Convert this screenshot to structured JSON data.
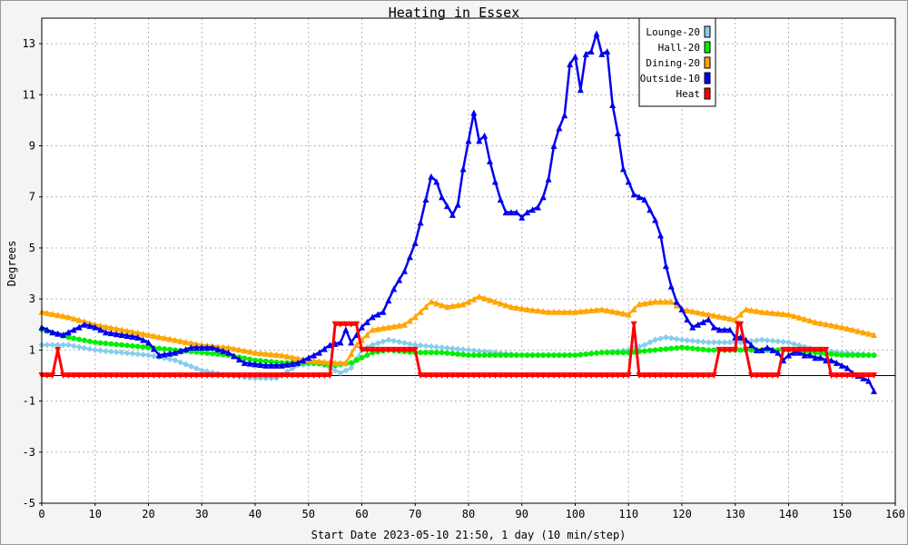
{
  "chart_data": {
    "type": "line",
    "title": "Heating in Essex",
    "xlabel": "Start Date 2023-05-10 21:50, 1 day (10 min/step)",
    "ylabel": "Degrees",
    "xlim": [
      0,
      160
    ],
    "ylim": [
      -5,
      14
    ],
    "x_ticks": [
      0,
      10,
      20,
      30,
      40,
      50,
      60,
      70,
      80,
      90,
      100,
      110,
      120,
      130,
      140,
      150,
      160
    ],
    "y_ticks": [
      -5,
      -3,
      -1,
      1,
      3,
      5,
      7,
      9,
      11,
      13
    ],
    "grid": true,
    "legend_position": "top-right",
    "zero_line": true,
    "series": [
      {
        "name": "Lounge-20",
        "color": "#87ceeb",
        "marker": "diamond",
        "points": [
          [
            0,
            1.2
          ],
          [
            5,
            1.2
          ],
          [
            10,
            1.0
          ],
          [
            15,
            0.9
          ],
          [
            20,
            0.8
          ],
          [
            25,
            0.6
          ],
          [
            30,
            0.2
          ],
          [
            35,
            0.0
          ],
          [
            40,
            -0.1
          ],
          [
            44,
            -0.1
          ],
          [
            48,
            0.4
          ],
          [
            52,
            0.5
          ],
          [
            56,
            0.1
          ],
          [
            58,
            0.3
          ],
          [
            60,
            1.0
          ],
          [
            62,
            1.2
          ],
          [
            65,
            1.4
          ],
          [
            70,
            1.2
          ],
          [
            75,
            1.1
          ],
          [
            80,
            1.0
          ],
          [
            85,
            0.9
          ],
          [
            90,
            0.8
          ],
          [
            95,
            0.8
          ],
          [
            100,
            0.8
          ],
          [
            105,
            0.9
          ],
          [
            110,
            1.0
          ],
          [
            113,
            1.2
          ],
          [
            115,
            1.4
          ],
          [
            117,
            1.5
          ],
          [
            120,
            1.4
          ],
          [
            125,
            1.3
          ],
          [
            128,
            1.3
          ],
          [
            131,
            1.3
          ],
          [
            135,
            1.4
          ],
          [
            140,
            1.3
          ],
          [
            145,
            1.0
          ],
          [
            150,
            0.9
          ],
          [
            156,
            0.8
          ]
        ]
      },
      {
        "name": "Hall-20",
        "color": "#00ee00",
        "marker": "circle",
        "points": [
          [
            0,
            1.8
          ],
          [
            5,
            1.5
          ],
          [
            10,
            1.3
          ],
          [
            15,
            1.2
          ],
          [
            20,
            1.1
          ],
          [
            25,
            1.0
          ],
          [
            30,
            0.9
          ],
          [
            35,
            0.8
          ],
          [
            40,
            0.6
          ],
          [
            45,
            0.5
          ],
          [
            50,
            0.5
          ],
          [
            55,
            0.4
          ],
          [
            58,
            0.5
          ],
          [
            62,
            0.9
          ],
          [
            65,
            1.0
          ],
          [
            70,
            0.9
          ],
          [
            75,
            0.9
          ],
          [
            80,
            0.8
          ],
          [
            85,
            0.8
          ],
          [
            90,
            0.8
          ],
          [
            95,
            0.8
          ],
          [
            100,
            0.8
          ],
          [
            105,
            0.9
          ],
          [
            110,
            0.9
          ],
          [
            115,
            1.0
          ],
          [
            120,
            1.1
          ],
          [
            125,
            1.0
          ],
          [
            130,
            1.0
          ],
          [
            135,
            1.0
          ],
          [
            140,
            1.0
          ],
          [
            145,
            0.9
          ],
          [
            150,
            0.8
          ],
          [
            156,
            0.8
          ]
        ]
      },
      {
        "name": "Dining-20",
        "color": "#ffa500",
        "marker": "triangle",
        "points": [
          [
            0,
            2.5
          ],
          [
            5,
            2.3
          ],
          [
            10,
            2.0
          ],
          [
            15,
            1.8
          ],
          [
            20,
            1.6
          ],
          [
            25,
            1.4
          ],
          [
            30,
            1.2
          ],
          [
            35,
            1.1
          ],
          [
            40,
            0.9
          ],
          [
            45,
            0.8
          ],
          [
            50,
            0.6
          ],
          [
            55,
            0.5
          ],
          [
            57,
            0.5
          ],
          [
            59,
            1.2
          ],
          [
            62,
            1.8
          ],
          [
            65,
            1.9
          ],
          [
            68,
            2.0
          ],
          [
            70,
            2.3
          ],
          [
            73,
            2.9
          ],
          [
            76,
            2.7
          ],
          [
            79,
            2.8
          ],
          [
            82,
            3.1
          ],
          [
            85,
            2.9
          ],
          [
            88,
            2.7
          ],
          [
            91,
            2.6
          ],
          [
            95,
            2.5
          ],
          [
            100,
            2.5
          ],
          [
            105,
            2.6
          ],
          [
            110,
            2.4
          ],
          [
            112,
            2.8
          ],
          [
            115,
            2.9
          ],
          [
            118,
            2.9
          ],
          [
            120,
            2.6
          ],
          [
            125,
            2.4
          ],
          [
            130,
            2.2
          ],
          [
            132,
            2.6
          ],
          [
            135,
            2.5
          ],
          [
            140,
            2.4
          ],
          [
            145,
            2.1
          ],
          [
            150,
            1.9
          ],
          [
            156,
            1.6
          ]
        ]
      },
      {
        "name": "Outside-10",
        "color": "#0000ee",
        "marker": "triangle",
        "points": [
          [
            0,
            1.9
          ],
          [
            2,
            1.7
          ],
          [
            4,
            1.6
          ],
          [
            6,
            1.8
          ],
          [
            8,
            2.0
          ],
          [
            10,
            1.9
          ],
          [
            12,
            1.7
          ],
          [
            15,
            1.6
          ],
          [
            18,
            1.5
          ],
          [
            20,
            1.3
          ],
          [
            22,
            0.8
          ],
          [
            25,
            0.9
          ],
          [
            28,
            1.1
          ],
          [
            32,
            1.1
          ],
          [
            35,
            0.9
          ],
          [
            38,
            0.5
          ],
          [
            42,
            0.4
          ],
          [
            45,
            0.4
          ],
          [
            48,
            0.5
          ],
          [
            50,
            0.7
          ],
          [
            52,
            0.9
          ],
          [
            54,
            1.2
          ],
          [
            56,
            1.3
          ],
          [
            57,
            1.8
          ],
          [
            58,
            1.3
          ],
          [
            60,
            1.9
          ],
          [
            62,
            2.3
          ],
          [
            64,
            2.5
          ],
          [
            66,
            3.4
          ],
          [
            68,
            4.1
          ],
          [
            70,
            5.2
          ],
          [
            71,
            6.0
          ],
          [
            72,
            6.9
          ],
          [
            73,
            7.8
          ],
          [
            74,
            7.6
          ],
          [
            75,
            7.0
          ],
          [
            77,
            6.3
          ],
          [
            78,
            6.7
          ],
          [
            79,
            8.1
          ],
          [
            80,
            9.2
          ],
          [
            81,
            10.3
          ],
          [
            82,
            9.2
          ],
          [
            83,
            9.4
          ],
          [
            84,
            8.4
          ],
          [
            85,
            7.6
          ],
          [
            86,
            6.9
          ],
          [
            87,
            6.4
          ],
          [
            88,
            6.4
          ],
          [
            89,
            6.4
          ],
          [
            90,
            6.2
          ],
          [
            91,
            6.4
          ],
          [
            92,
            6.5
          ],
          [
            93,
            6.6
          ],
          [
            94,
            7.0
          ],
          [
            95,
            7.7
          ],
          [
            96,
            9.0
          ],
          [
            97,
            9.7
          ],
          [
            98,
            10.2
          ],
          [
            99,
            12.2
          ],
          [
            100,
            12.5
          ],
          [
            101,
            11.2
          ],
          [
            102,
            12.6
          ],
          [
            103,
            12.7
          ],
          [
            104,
            13.4
          ],
          [
            105,
            12.6
          ],
          [
            106,
            12.7
          ],
          [
            107,
            10.6
          ],
          [
            108,
            9.5
          ],
          [
            109,
            8.1
          ],
          [
            110,
            7.6
          ],
          [
            111,
            7.1
          ],
          [
            112,
            7.0
          ],
          [
            113,
            6.9
          ],
          [
            114,
            6.5
          ],
          [
            115,
            6.1
          ],
          [
            116,
            5.5
          ],
          [
            117,
            4.3
          ],
          [
            118,
            3.5
          ],
          [
            119,
            2.9
          ],
          [
            120,
            2.6
          ],
          [
            121,
            2.2
          ],
          [
            122,
            1.9
          ],
          [
            123,
            2.0
          ],
          [
            124,
            2.1
          ],
          [
            125,
            2.2
          ],
          [
            126,
            1.9
          ],
          [
            127,
            1.8
          ],
          [
            128,
            1.8
          ],
          [
            129,
            1.8
          ],
          [
            130,
            1.5
          ],
          [
            131,
            1.5
          ],
          [
            132,
            1.4
          ],
          [
            133,
            1.2
          ],
          [
            134,
            1.0
          ],
          [
            135,
            1.0
          ],
          [
            136,
            1.1
          ],
          [
            137,
            1.0
          ],
          [
            138,
            0.9
          ],
          [
            139,
            0.6
          ],
          [
            140,
            0.8
          ],
          [
            141,
            0.9
          ],
          [
            142,
            0.9
          ],
          [
            143,
            0.8
          ],
          [
            144,
            0.8
          ],
          [
            145,
            0.7
          ],
          [
            146,
            0.7
          ],
          [
            147,
            0.6
          ],
          [
            148,
            0.6
          ],
          [
            149,
            0.5
          ],
          [
            150,
            0.4
          ],
          [
            151,
            0.3
          ],
          [
            152,
            0.1
          ],
          [
            153,
            0.0
          ],
          [
            154,
            -0.1
          ],
          [
            155,
            -0.2
          ],
          [
            156,
            -0.6
          ]
        ]
      },
      {
        "name": "Heat",
        "color": "#ff0000",
        "marker": "triangle-down",
        "points": [
          [
            0,
            0.0
          ],
          [
            2,
            0.0
          ],
          [
            3,
            1.0
          ],
          [
            4,
            0.0
          ],
          [
            54,
            0.0
          ],
          [
            55,
            2.0
          ],
          [
            59,
            2.0
          ],
          [
            60,
            1.0
          ],
          [
            70,
            1.0
          ],
          [
            71,
            0.0
          ],
          [
            110,
            0.0
          ],
          [
            111,
            2.0
          ],
          [
            112,
            0.0
          ],
          [
            126,
            0.0
          ],
          [
            127,
            1.0
          ],
          [
            130,
            1.0
          ],
          [
            130.5,
            2.0
          ],
          [
            131,
            2.0
          ],
          [
            132,
            1.0
          ],
          [
            133,
            0.0
          ],
          [
            138,
            0.0
          ],
          [
            139,
            1.0
          ],
          [
            147,
            1.0
          ],
          [
            148,
            0.0
          ],
          [
            156,
            0.0
          ]
        ]
      }
    ]
  }
}
